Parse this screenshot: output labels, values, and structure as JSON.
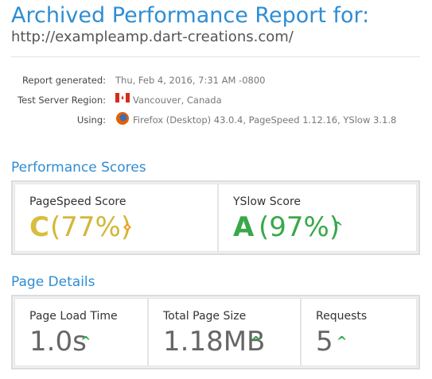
{
  "header": {
    "title": "Archived Performance Report for:",
    "url": "http://exampleamp.dart-creations.com/"
  },
  "meta": [
    {
      "label": "Report generated:",
      "value": "Thu, Feb 4, 2016, 7:31 AM -0800"
    },
    {
      "label": "Test Server Region:",
      "value": "Vancouver, Canada"
    },
    {
      "label": "Using:",
      "value": "Firefox (Desktop) 43.0.4, PageSpeed 1.12.16, YSlow 3.1.8"
    }
  ],
  "scores": {
    "title": "Performance Scores",
    "items": [
      {
        "label": "PageSpeed Score",
        "grade": "C",
        "percent": "(77%)"
      },
      {
        "label": "YSlow Score",
        "grade": "A",
        "percent": "(97%)"
      }
    ]
  },
  "details": {
    "title": "Page Details",
    "items": [
      {
        "label": "Page Load Time",
        "value": "1.0s"
      },
      {
        "label": "Total Page Size",
        "value": "1.18MB"
      },
      {
        "label": "Requests",
        "value": "5"
      }
    ]
  }
}
